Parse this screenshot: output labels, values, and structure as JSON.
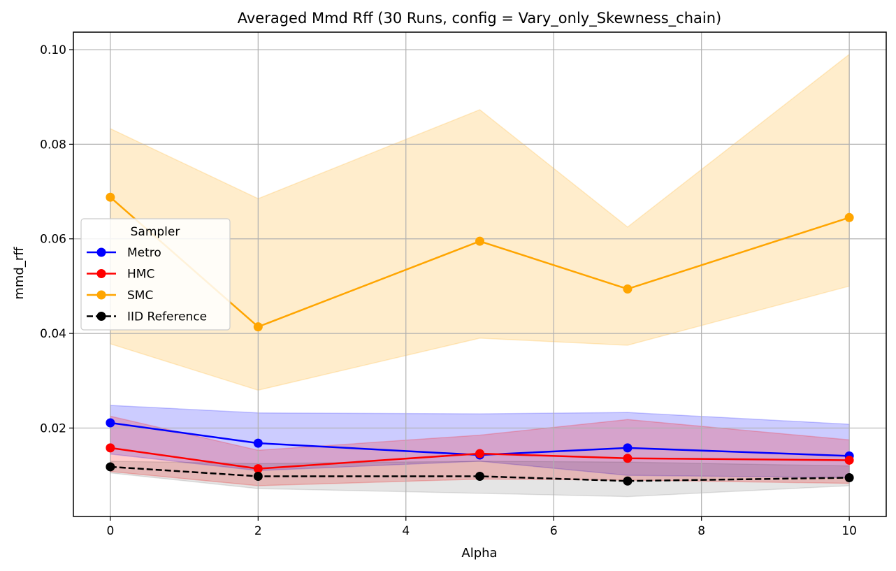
{
  "chart_data": {
    "type": "line",
    "title": "Averaged Mmd Rff (30 Runs, config = Vary_only_Skewness_chain)",
    "xlabel": "Alpha",
    "ylabel": "mmd_rff",
    "x": [
      0,
      2,
      5,
      7,
      10
    ],
    "xlim": [
      -0.5,
      10.5
    ],
    "ylim": [
      0.0013,
      0.1037
    ],
    "xticks": [
      "0",
      "2",
      "4",
      "6",
      "8",
      "10"
    ],
    "yticks": [
      "0.02",
      "0.04",
      "0.06",
      "0.08",
      "0.10"
    ],
    "grid": true,
    "legend": {
      "title": "Sampler",
      "placement": "center-left"
    },
    "series": [
      {
        "name": "Metro",
        "color": "#0000ff",
        "linestyle": "solid",
        "values": [
          0.0211,
          0.0168,
          0.0143,
          0.0158,
          0.0141
        ],
        "band_lower": [
          0.0145,
          0.011,
          0.013,
          0.01,
          0.0095
        ],
        "band_upper": [
          0.0248,
          0.0232,
          0.023,
          0.0233,
          0.0208
        ],
        "band_alpha": 0.2
      },
      {
        "name": "HMC",
        "color": "#ff0000",
        "linestyle": "solid",
        "values": [
          0.0158,
          0.0114,
          0.0146,
          0.0136,
          0.0132
        ],
        "band_lower": [
          0.0108,
          0.0078,
          0.0092,
          0.009,
          0.0083
        ],
        "band_upper": [
          0.0225,
          0.0153,
          0.0185,
          0.0218,
          0.0175
        ],
        "band_alpha": 0.2
      },
      {
        "name": "SMC",
        "color": "#ffa500",
        "linestyle": "solid",
        "values": [
          0.0688,
          0.0414,
          0.0595,
          0.0494,
          0.0645
        ],
        "band_lower": [
          0.0378,
          0.028,
          0.039,
          0.0375,
          0.05
        ],
        "band_upper": [
          0.0833,
          0.0685,
          0.0873,
          0.0625,
          0.099
        ],
        "band_alpha": 0.2
      },
      {
        "name": "IID Reference",
        "color": "#000000",
        "linestyle": "dashed",
        "values": [
          0.0118,
          0.0098,
          0.0098,
          0.0088,
          0.0095
        ],
        "band_lower": [
          0.0105,
          0.0072,
          0.0062,
          0.0055,
          0.0078
        ],
        "band_upper": [
          0.013,
          0.0125,
          0.013,
          0.0128,
          0.012
        ],
        "band_alpha": 0.1
      }
    ]
  }
}
